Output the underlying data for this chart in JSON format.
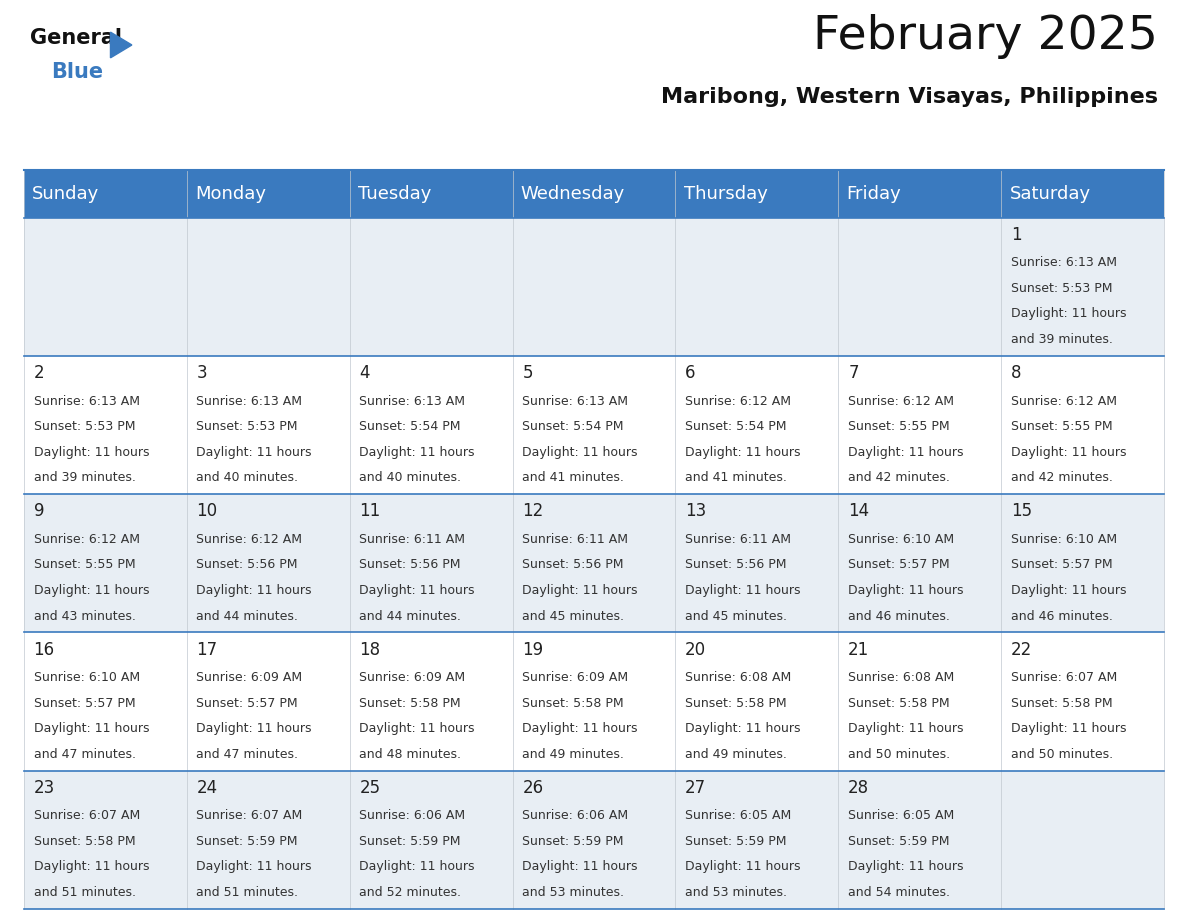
{
  "title": "February 2025",
  "subtitle": "Maribong, Western Visayas, Philippines",
  "header_bg_color": "#3a7abf",
  "header_text_color": "#ffffff",
  "row0_bg": "#e8eef4",
  "row1_bg": "#ffffff",
  "day_names": [
    "Sunday",
    "Monday",
    "Tuesday",
    "Wednesday",
    "Thursday",
    "Friday",
    "Saturday"
  ],
  "title_fontsize": 34,
  "subtitle_fontsize": 16,
  "header_fontsize": 13,
  "day_num_fontsize": 12,
  "cell_fontsize": 9,
  "days": [
    {
      "day": 1,
      "col": 6,
      "row": 0,
      "sunrise": "6:13 AM",
      "sunset": "5:53 PM",
      "daylight_hours": "11 hours",
      "daylight_mins": "and 39 minutes."
    },
    {
      "day": 2,
      "col": 0,
      "row": 1,
      "sunrise": "6:13 AM",
      "sunset": "5:53 PM",
      "daylight_hours": "11 hours",
      "daylight_mins": "and 39 minutes."
    },
    {
      "day": 3,
      "col": 1,
      "row": 1,
      "sunrise": "6:13 AM",
      "sunset": "5:53 PM",
      "daylight_hours": "11 hours",
      "daylight_mins": "and 40 minutes."
    },
    {
      "day": 4,
      "col": 2,
      "row": 1,
      "sunrise": "6:13 AM",
      "sunset": "5:54 PM",
      "daylight_hours": "11 hours",
      "daylight_mins": "and 40 minutes."
    },
    {
      "day": 5,
      "col": 3,
      "row": 1,
      "sunrise": "6:13 AM",
      "sunset": "5:54 PM",
      "daylight_hours": "11 hours",
      "daylight_mins": "and 41 minutes."
    },
    {
      "day": 6,
      "col": 4,
      "row": 1,
      "sunrise": "6:12 AM",
      "sunset": "5:54 PM",
      "daylight_hours": "11 hours",
      "daylight_mins": "and 41 minutes."
    },
    {
      "day": 7,
      "col": 5,
      "row": 1,
      "sunrise": "6:12 AM",
      "sunset": "5:55 PM",
      "daylight_hours": "11 hours",
      "daylight_mins": "and 42 minutes."
    },
    {
      "day": 8,
      "col": 6,
      "row": 1,
      "sunrise": "6:12 AM",
      "sunset": "5:55 PM",
      "daylight_hours": "11 hours",
      "daylight_mins": "and 42 minutes."
    },
    {
      "day": 9,
      "col": 0,
      "row": 2,
      "sunrise": "6:12 AM",
      "sunset": "5:55 PM",
      "daylight_hours": "11 hours",
      "daylight_mins": "and 43 minutes."
    },
    {
      "day": 10,
      "col": 1,
      "row": 2,
      "sunrise": "6:12 AM",
      "sunset": "5:56 PM",
      "daylight_hours": "11 hours",
      "daylight_mins": "and 44 minutes."
    },
    {
      "day": 11,
      "col": 2,
      "row": 2,
      "sunrise": "6:11 AM",
      "sunset": "5:56 PM",
      "daylight_hours": "11 hours",
      "daylight_mins": "and 44 minutes."
    },
    {
      "day": 12,
      "col": 3,
      "row": 2,
      "sunrise": "6:11 AM",
      "sunset": "5:56 PM",
      "daylight_hours": "11 hours",
      "daylight_mins": "and 45 minutes."
    },
    {
      "day": 13,
      "col": 4,
      "row": 2,
      "sunrise": "6:11 AM",
      "sunset": "5:56 PM",
      "daylight_hours": "11 hours",
      "daylight_mins": "and 45 minutes."
    },
    {
      "day": 14,
      "col": 5,
      "row": 2,
      "sunrise": "6:10 AM",
      "sunset": "5:57 PM",
      "daylight_hours": "11 hours",
      "daylight_mins": "and 46 minutes."
    },
    {
      "day": 15,
      "col": 6,
      "row": 2,
      "sunrise": "6:10 AM",
      "sunset": "5:57 PM",
      "daylight_hours": "11 hours",
      "daylight_mins": "and 46 minutes."
    },
    {
      "day": 16,
      "col": 0,
      "row": 3,
      "sunrise": "6:10 AM",
      "sunset": "5:57 PM",
      "daylight_hours": "11 hours",
      "daylight_mins": "and 47 minutes."
    },
    {
      "day": 17,
      "col": 1,
      "row": 3,
      "sunrise": "6:09 AM",
      "sunset": "5:57 PM",
      "daylight_hours": "11 hours",
      "daylight_mins": "and 47 minutes."
    },
    {
      "day": 18,
      "col": 2,
      "row": 3,
      "sunrise": "6:09 AM",
      "sunset": "5:58 PM",
      "daylight_hours": "11 hours",
      "daylight_mins": "and 48 minutes."
    },
    {
      "day": 19,
      "col": 3,
      "row": 3,
      "sunrise": "6:09 AM",
      "sunset": "5:58 PM",
      "daylight_hours": "11 hours",
      "daylight_mins": "and 49 minutes."
    },
    {
      "day": 20,
      "col": 4,
      "row": 3,
      "sunrise": "6:08 AM",
      "sunset": "5:58 PM",
      "daylight_hours": "11 hours",
      "daylight_mins": "and 49 minutes."
    },
    {
      "day": 21,
      "col": 5,
      "row": 3,
      "sunrise": "6:08 AM",
      "sunset": "5:58 PM",
      "daylight_hours": "11 hours",
      "daylight_mins": "and 50 minutes."
    },
    {
      "day": 22,
      "col": 6,
      "row": 3,
      "sunrise": "6:07 AM",
      "sunset": "5:58 PM",
      "daylight_hours": "11 hours",
      "daylight_mins": "and 50 minutes."
    },
    {
      "day": 23,
      "col": 0,
      "row": 4,
      "sunrise": "6:07 AM",
      "sunset": "5:58 PM",
      "daylight_hours": "11 hours",
      "daylight_mins": "and 51 minutes."
    },
    {
      "day": 24,
      "col": 1,
      "row": 4,
      "sunrise": "6:07 AM",
      "sunset": "5:59 PM",
      "daylight_hours": "11 hours",
      "daylight_mins": "and 51 minutes."
    },
    {
      "day": 25,
      "col": 2,
      "row": 4,
      "sunrise": "6:06 AM",
      "sunset": "5:59 PM",
      "daylight_hours": "11 hours",
      "daylight_mins": "and 52 minutes."
    },
    {
      "day": 26,
      "col": 3,
      "row": 4,
      "sunrise": "6:06 AM",
      "sunset": "5:59 PM",
      "daylight_hours": "11 hours",
      "daylight_mins": "and 53 minutes."
    },
    {
      "day": 27,
      "col": 4,
      "row": 4,
      "sunrise": "6:05 AM",
      "sunset": "5:59 PM",
      "daylight_hours": "11 hours",
      "daylight_mins": "and 53 minutes."
    },
    {
      "day": 28,
      "col": 5,
      "row": 4,
      "sunrise": "6:05 AM",
      "sunset": "5:59 PM",
      "daylight_hours": "11 hours",
      "daylight_mins": "and 54 minutes."
    }
  ],
  "num_rows": 5,
  "num_cols": 7,
  "fig_width": 11.88,
  "fig_height": 9.18,
  "dpi": 100
}
